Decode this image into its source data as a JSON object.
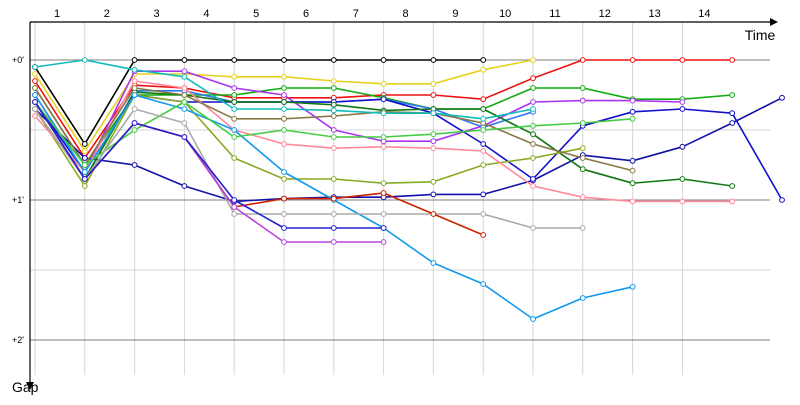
{
  "chart_data": {
    "type": "line",
    "xlabel": "Time",
    "ylabel": "Gap",
    "x_ticks": [
      "1",
      "2",
      "3",
      "4",
      "5",
      "6",
      "7",
      "8",
      "9",
      "10",
      "11",
      "12",
      "13",
      "14"
    ],
    "y_ticks": [
      "+0'",
      "+1'",
      "+2'"
    ],
    "ylim": [
      0,
      2.3
    ],
    "grid": true,
    "series": [
      {
        "color": "#000000",
        "points": [
          [
            1,
            0.05
          ],
          [
            2,
            0.6
          ],
          [
            3,
            0.0
          ],
          [
            4,
            0.0
          ],
          [
            5,
            0.0
          ],
          [
            6,
            0.0
          ],
          [
            7,
            0.0
          ],
          [
            8,
            0.0
          ],
          [
            9,
            0.0
          ],
          [
            10,
            0.0
          ]
        ]
      },
      {
        "color": "#e6d11d",
        "points": [
          [
            1,
            0.1
          ],
          [
            2,
            0.65
          ],
          [
            3,
            0.1
          ],
          [
            4,
            0.1
          ],
          [
            5,
            0.12
          ],
          [
            6,
            0.12
          ],
          [
            7,
            0.15
          ],
          [
            8,
            0.17
          ],
          [
            9,
            0.17
          ],
          [
            10,
            0.07
          ],
          [
            11,
            0.0
          ]
        ]
      },
      {
        "color": "#ee1111",
        "points": [
          [
            1,
            0.15
          ],
          [
            2,
            0.7
          ],
          [
            3,
            0.18
          ],
          [
            4,
            0.2
          ],
          [
            5,
            0.27
          ],
          [
            6,
            0.27
          ],
          [
            7,
            0.27
          ],
          [
            8,
            0.25
          ],
          [
            9,
            0.25
          ],
          [
            10,
            0.28
          ],
          [
            11,
            0.13
          ],
          [
            12,
            0.0
          ],
          [
            13,
            0.0
          ],
          [
            14,
            0.0
          ],
          [
            15,
            0.0
          ]
        ]
      },
      {
        "color": "#11aa11",
        "points": [
          [
            1,
            0.2
          ],
          [
            2,
            0.75
          ],
          [
            3,
            0.25
          ],
          [
            4,
            0.25
          ],
          [
            5,
            0.25
          ],
          [
            6,
            0.2
          ],
          [
            7,
            0.2
          ],
          [
            8,
            0.27
          ],
          [
            9,
            0.35
          ],
          [
            10,
            0.35
          ],
          [
            11,
            0.2
          ],
          [
            12,
            0.2
          ],
          [
            13,
            0.28
          ],
          [
            14,
            0.28
          ],
          [
            15,
            0.25
          ]
        ]
      },
      {
        "color": "#aa33ee",
        "points": [
          [
            1,
            0.25
          ],
          [
            2,
            0.8
          ],
          [
            3,
            0.08
          ],
          [
            4,
            0.08
          ],
          [
            5,
            0.2
          ],
          [
            6,
            0.25
          ],
          [
            7,
            0.5
          ],
          [
            8,
            0.58
          ],
          [
            9,
            0.58
          ],
          [
            10,
            0.47
          ],
          [
            11,
            0.3
          ],
          [
            12,
            0.29
          ],
          [
            13,
            0.29
          ],
          [
            14,
            0.3
          ]
        ]
      },
      {
        "color": "#3377ee",
        "points": [
          [
            1,
            0.3
          ],
          [
            2,
            0.85
          ],
          [
            3,
            0.22
          ],
          [
            4,
            0.22
          ],
          [
            5,
            0.3
          ],
          [
            6,
            0.3
          ],
          [
            7,
            0.3
          ],
          [
            8,
            0.28
          ],
          [
            9,
            0.35
          ],
          [
            10,
            0.48
          ],
          [
            11,
            0.37
          ]
        ]
      },
      {
        "color": "#1111aa",
        "points": [
          [
            1,
            0.35
          ],
          [
            2,
            0.7
          ],
          [
            3,
            0.75
          ],
          [
            4,
            0.9
          ],
          [
            5,
            1.01
          ],
          [
            6,
            0.99
          ],
          [
            7,
            0.98
          ],
          [
            8,
            0.98
          ],
          [
            9,
            0.96
          ],
          [
            10,
            0.96
          ],
          [
            11,
            0.86
          ],
          [
            12,
            0.68
          ],
          [
            13,
            0.72
          ],
          [
            14,
            0.62
          ],
          [
            15,
            0.45
          ],
          [
            16,
            0.27
          ]
        ]
      },
      {
        "color": "#1111cc",
        "points": [
          [
            1,
            0.3
          ],
          [
            2,
            0.8
          ],
          [
            3,
            0.25
          ],
          [
            4,
            0.3
          ],
          [
            5,
            0.3
          ],
          [
            6,
            0.3
          ],
          [
            7,
            0.3
          ],
          [
            8,
            0.28
          ],
          [
            9,
            0.38
          ],
          [
            10,
            0.6
          ],
          [
            11,
            0.85
          ],
          [
            12,
            0.47
          ],
          [
            13,
            0.37
          ],
          [
            14,
            0.35
          ],
          [
            15,
            0.38
          ],
          [
            16,
            1.0
          ]
        ]
      },
      {
        "color": "#117711",
        "points": [
          [
            1,
            0.3
          ],
          [
            2,
            0.85
          ],
          [
            3,
            0.23
          ],
          [
            4,
            0.25
          ],
          [
            5,
            0.3
          ],
          [
            6,
            0.3
          ],
          [
            7,
            0.32
          ],
          [
            8,
            0.36
          ],
          [
            9,
            0.35
          ],
          [
            10,
            0.35
          ],
          [
            11,
            0.53
          ],
          [
            12,
            0.78
          ],
          [
            13,
            0.88
          ],
          [
            14,
            0.85
          ],
          [
            15,
            0.9
          ]
        ]
      },
      {
        "color": "#88aa22",
        "points": [
          [
            1,
            0.35
          ],
          [
            2,
            0.9
          ],
          [
            3,
            0.25
          ],
          [
            4,
            0.3
          ],
          [
            5,
            0.7
          ],
          [
            6,
            0.85
          ],
          [
            7,
            0.85
          ],
          [
            8,
            0.88
          ],
          [
            9,
            0.87
          ],
          [
            10,
            0.75
          ],
          [
            11,
            0.7
          ],
          [
            12,
            0.63
          ]
        ]
      },
      {
        "color": "#ff8899",
        "points": [
          [
            1,
            0.4
          ],
          [
            2,
            0.8
          ],
          [
            3,
            0.15
          ],
          [
            4,
            0.2
          ],
          [
            5,
            0.5
          ],
          [
            6,
            0.6
          ],
          [
            7,
            0.63
          ],
          [
            8,
            0.62
          ],
          [
            9,
            0.63
          ],
          [
            10,
            0.65
          ],
          [
            11,
            0.9
          ],
          [
            12,
            0.98
          ],
          [
            13,
            1.01
          ],
          [
            14,
            1.01
          ],
          [
            15,
            1.01
          ]
        ]
      },
      {
        "color": "#887744",
        "points": [
          [
            1,
            0.2
          ],
          [
            2,
            0.75
          ],
          [
            3,
            0.2
          ],
          [
            4,
            0.25
          ],
          [
            5,
            0.42
          ],
          [
            6,
            0.42
          ],
          [
            7,
            0.4
          ],
          [
            8,
            0.37
          ],
          [
            9,
            0.38
          ],
          [
            10,
            0.45
          ],
          [
            11,
            0.6
          ],
          [
            12,
            0.7
          ],
          [
            13,
            0.79
          ]
        ]
      },
      {
        "color": "#11bbbb",
        "points": [
          [
            1,
            0.05
          ],
          [
            2,
            0.0
          ],
          [
            3,
            0.07
          ],
          [
            4,
            0.12
          ],
          [
            5,
            0.35
          ],
          [
            6,
            0.35
          ],
          [
            7,
            0.36
          ],
          [
            8,
            0.38
          ],
          [
            9,
            0.38
          ],
          [
            10,
            0.42
          ],
          [
            11,
            0.35
          ]
        ]
      },
      {
        "color": "#1199ee",
        "points": [
          [
            1,
            0.25
          ],
          [
            2,
            0.8
          ],
          [
            3,
            0.25
          ],
          [
            4,
            0.35
          ],
          [
            5,
            0.5
          ],
          [
            6,
            0.8
          ],
          [
            7,
            1.0
          ],
          [
            8,
            1.2
          ],
          [
            9,
            1.45
          ],
          [
            10,
            1.6
          ],
          [
            11,
            1.85
          ],
          [
            12,
            1.7
          ],
          [
            13,
            1.62
          ]
        ]
      },
      {
        "color": "#44cc44",
        "points": [
          [
            1,
            0.3
          ],
          [
            2,
            0.75
          ],
          [
            3,
            0.5
          ],
          [
            4,
            0.3
          ],
          [
            5,
            0.55
          ],
          [
            6,
            0.5
          ],
          [
            7,
            0.55
          ],
          [
            8,
            0.55
          ],
          [
            9,
            0.53
          ],
          [
            10,
            0.5
          ],
          [
            11,
            0.47
          ],
          [
            12,
            0.45
          ],
          [
            13,
            0.42
          ]
        ]
      },
      {
        "color": "#aaaaaa",
        "points": [
          [
            1,
            0.35
          ],
          [
            2,
            0.85
          ],
          [
            3,
            0.35
          ],
          [
            4,
            0.45
          ],
          [
            5,
            1.1
          ],
          [
            6,
            1.1
          ],
          [
            7,
            1.1
          ],
          [
            8,
            1.1
          ],
          [
            9,
            1.1
          ],
          [
            10,
            1.1
          ],
          [
            11,
            1.2
          ],
          [
            12,
            1.2
          ]
        ]
      },
      {
        "color": "#cc2200",
        "points": [
          [
            1,
            0.3
          ],
          [
            2,
            0.85
          ],
          [
            3,
            0.45
          ],
          [
            4,
            0.55
          ],
          [
            5,
            1.05
          ],
          [
            6,
            0.99
          ],
          [
            7,
            0.99
          ],
          [
            8,
            0.95
          ],
          [
            9,
            1.1
          ],
          [
            10,
            1.25
          ]
        ]
      },
      {
        "color": "#bb44dd",
        "points": [
          [
            1,
            0.3
          ],
          [
            2,
            0.85
          ],
          [
            3,
            0.45
          ],
          [
            4,
            0.55
          ],
          [
            5,
            1.05
          ],
          [
            6,
            1.3
          ],
          [
            7,
            1.3
          ],
          [
            8,
            1.3
          ]
        ]
      },
      {
        "color": "#2222cc",
        "points": [
          [
            1,
            0.3
          ],
          [
            2,
            0.85
          ],
          [
            3,
            0.45
          ],
          [
            4,
            0.55
          ],
          [
            5,
            1.0
          ],
          [
            6,
            1.2
          ],
          [
            7,
            1.2
          ],
          [
            8,
            1.2
          ]
        ]
      }
    ]
  }
}
